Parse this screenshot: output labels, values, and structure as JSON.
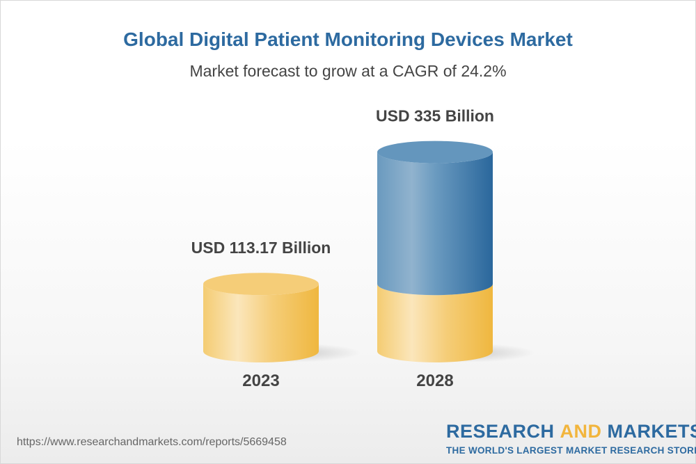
{
  "chart_data": {
    "type": "bar",
    "style": "3d-cylinder",
    "title": "Global Digital Patient Monitoring Devices Market",
    "subtitle": "Market forecast to grow at a CAGR of 24.2%",
    "categories": [
      "2023",
      "2028"
    ],
    "values": [
      113.17,
      335
    ],
    "unit": "USD Billion",
    "data_labels": [
      "USD 113.17 Billion",
      "USD 335 Billion"
    ],
    "grid": false,
    "colors": {
      "base": "#f2c45e",
      "growth": "#3f77a8",
      "title": "#2d6aa0"
    }
  },
  "footer": {
    "url": "https://www.researchandmarkets.com/reports/5669458",
    "logo_part1": "RESEARCH ",
    "logo_part2": "AND",
    "logo_part3": " MARKETS",
    "tagline": "THE WORLD'S LARGEST MARKET RESEARCH STORE"
  }
}
